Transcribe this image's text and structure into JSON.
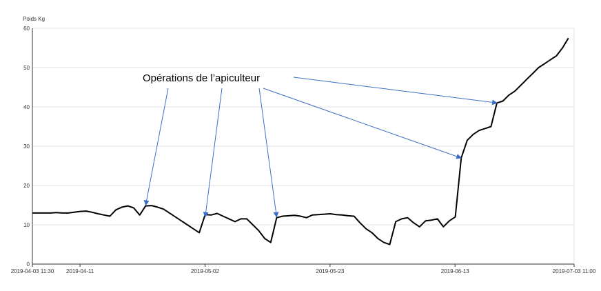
{
  "chart_data": {
    "type": "line",
    "title": "",
    "xlabel": "",
    "ylabel": "Poids Kg",
    "ylim": [
      0,
      60
    ],
    "yticks": [
      0,
      10,
      20,
      30,
      40,
      50,
      60
    ],
    "xlim": [
      "2019-04-03 11:30",
      "2019-07-03 11:00"
    ],
    "x_tick_labels": [
      "2019-04-03 11:30",
      "2019-04-11",
      "2019-05-02",
      "2019-05-23",
      "2019-06-13",
      "2019-07-03 11:00"
    ],
    "x_tick_days": [
      0,
      8,
      29,
      50,
      71,
      91
    ],
    "grid": true,
    "legend": "none",
    "line_color": "#000000",
    "arrow_color": "#3a6fc4",
    "annotation": {
      "text": "Opérations de l’apiculteur",
      "targets": [
        {
          "x": "2019-04-22",
          "y": 15
        },
        {
          "x": "2019-05-02",
          "y": 12
        },
        {
          "x": "2019-05-14",
          "y": 12
        },
        {
          "x": "2019-06-14",
          "y": 27
        },
        {
          "x": "2019-06-20",
          "y": 41
        }
      ]
    },
    "series": [
      {
        "x": [
          "2019-04-03",
          "2019-04-04",
          "2019-04-05",
          "2019-04-06",
          "2019-04-07",
          "2019-04-08",
          "2019-04-09",
          "2019-04-10",
          "2019-04-11",
          "2019-04-12",
          "2019-04-13",
          "2019-04-14",
          "2019-04-15",
          "2019-04-16",
          "2019-04-17",
          "2019-04-18",
          "2019-04-19",
          "2019-04-20",
          "2019-04-21",
          "2019-04-22",
          "2019-04-23",
          "2019-04-24",
          "2019-04-25",
          "2019-04-26",
          "2019-04-27",
          "2019-04-28",
          "2019-04-29",
          "2019-04-30",
          "2019-05-01",
          "2019-05-02",
          "2019-05-03",
          "2019-05-04",
          "2019-05-05",
          "2019-05-06",
          "2019-05-07",
          "2019-05-08",
          "2019-05-09",
          "2019-05-10",
          "2019-05-11",
          "2019-05-12",
          "2019-05-13",
          "2019-05-14",
          "2019-05-15",
          "2019-05-16",
          "2019-05-17",
          "2019-05-18",
          "2019-05-19",
          "2019-05-20",
          "2019-05-21",
          "2019-05-22",
          "2019-05-23",
          "2019-05-24",
          "2019-05-25",
          "2019-05-26",
          "2019-05-27",
          "2019-05-28",
          "2019-05-29",
          "2019-05-30",
          "2019-05-31",
          "2019-06-01",
          "2019-06-02",
          "2019-06-03",
          "2019-06-04",
          "2019-06-05",
          "2019-06-06",
          "2019-06-07",
          "2019-06-08",
          "2019-06-09",
          "2019-06-10",
          "2019-06-11",
          "2019-06-12",
          "2019-06-13",
          "2019-06-14",
          "2019-06-15",
          "2019-06-16",
          "2019-06-17",
          "2019-06-18",
          "2019-06-19",
          "2019-06-20",
          "2019-06-21",
          "2019-06-22",
          "2019-06-23",
          "2019-06-24",
          "2019-06-25",
          "2019-06-26",
          "2019-06-27",
          "2019-06-28",
          "2019-06-29",
          "2019-06-30",
          "2019-07-01",
          "2019-07-02"
        ],
        "values": [
          13,
          13,
          13,
          13,
          13.1,
          13,
          13,
          13.2,
          13.4,
          13.5,
          13.2,
          12.8,
          12.5,
          12.2,
          13.8,
          14.5,
          14.8,
          14.3,
          12.5,
          14.8,
          14.9,
          14.5,
          14,
          13,
          12,
          11,
          10,
          9,
          8,
          12.6,
          12.5,
          12.9,
          12.2,
          11.5,
          10.8,
          11.5,
          11.5,
          10,
          8.5,
          6.5,
          5.5,
          11.8,
          12.2,
          12.3,
          12.4,
          12.2,
          11.8,
          12.5,
          12.6,
          12.7,
          12.8,
          12.6,
          12.5,
          12.3,
          12.2,
          10.5,
          9,
          8,
          6.5,
          5.5,
          5,
          10.8,
          11.5,
          11.8,
          10.5,
          9.5,
          11,
          11.2,
          11.5,
          9.5,
          11,
          12,
          27,
          31.5,
          33,
          34,
          34.5,
          35,
          41,
          41.5,
          43,
          44,
          45.5,
          47,
          48.5,
          50,
          51,
          52,
          53,
          55,
          57.5
        ]
      }
    ]
  }
}
